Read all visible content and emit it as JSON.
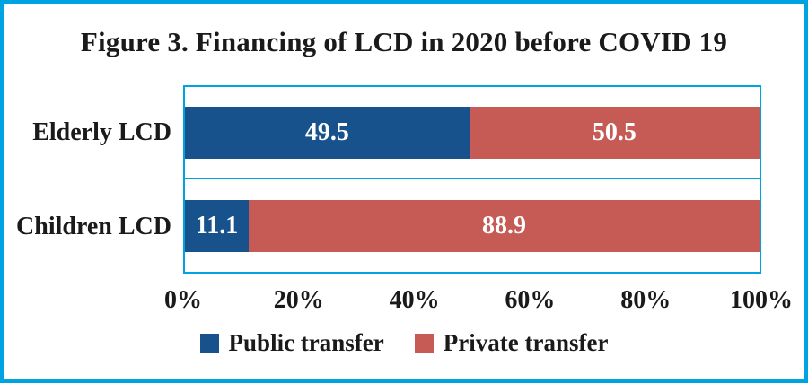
{
  "figure": {
    "title": "Figure 3. Financing of LCD in 2020 before COVID 19"
  },
  "chart_data": {
    "type": "bar",
    "orientation": "horizontal",
    "stacked": true,
    "title": "Figure 3. Financing of LCD in 2020 before COVID 19",
    "categories": [
      "Elderly LCD",
      "Children LCD"
    ],
    "series": [
      {
        "name": "Public transfer",
        "color": "#17528C",
        "values": [
          49.5,
          11.1
        ]
      },
      {
        "name": "Private transfer",
        "color": "#C65A54",
        "values": [
          50.5,
          88.9
        ]
      }
    ],
    "x_axis": {
      "tick_labels": [
        "0%",
        "20%",
        "40%",
        "60%",
        "80%",
        "100%"
      ],
      "min": 0,
      "max": 100,
      "unit": "%"
    },
    "ylabel": "",
    "xlabel": "",
    "grid": false,
    "legend_position": "bottom",
    "bar_value_labels": [
      "49.5",
      "50.5",
      "11.1",
      "88.9"
    ]
  },
  "colors": {
    "frame_border": "#00A3E2",
    "public_transfer": "#17528C",
    "private_transfer": "#C65A54",
    "text": "#1A1A1A",
    "bar_label_text": "#FFFFFF",
    "background": "#FFFFFF"
  }
}
